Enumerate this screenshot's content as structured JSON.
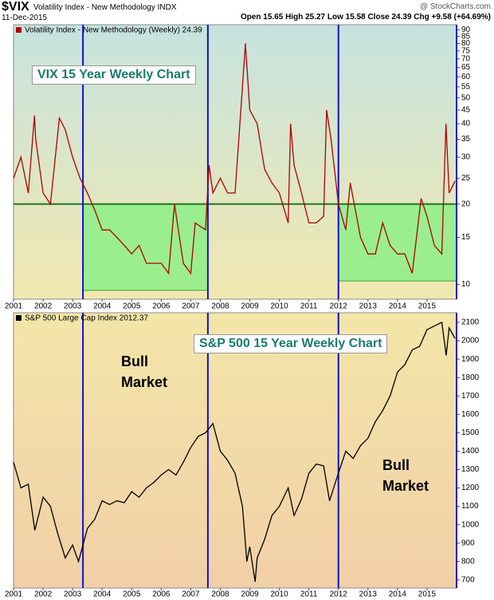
{
  "header": {
    "symbol": "$VIX",
    "name": "Volatility Index - New Methodology INDX",
    "source": "@ StockCharts.com",
    "date": "11-Dec-2015",
    "quote": "Open 15.65 High 25.27 Low 15.58 Close 24.39 Chg +9.58 (+64.69%)"
  },
  "chart_data": [
    {
      "type": "line",
      "log_scale": true,
      "x": [
        2001.0,
        2001.25,
        2001.5,
        2001.71,
        2001.75,
        2002.0,
        2002.25,
        2002.55,
        2002.75,
        2003.0,
        2003.25,
        2003.5,
        2003.75,
        2004.0,
        2004.25,
        2004.5,
        2004.75,
        2005.0,
        2005.25,
        2005.5,
        2005.75,
        2006.0,
        2006.25,
        2006.45,
        2006.75,
        2007.0,
        2007.15,
        2007.5,
        2007.62,
        2007.75,
        2008.0,
        2008.25,
        2008.5,
        2008.75,
        2008.85,
        2009.0,
        2009.25,
        2009.5,
        2009.75,
        2010.0,
        2010.3,
        2010.38,
        2010.5,
        2010.75,
        2011.0,
        2011.25,
        2011.5,
        2011.6,
        2011.75,
        2012.0,
        2012.25,
        2012.4,
        2012.75,
        2013.0,
        2013.25,
        2013.5,
        2013.75,
        2014.0,
        2014.25,
        2014.5,
        2014.8,
        2015.0,
        2015.25,
        2015.5,
        2015.64,
        2015.75,
        2015.95
      ],
      "series": [
        {
          "name": "Volatility Index - New Methodology (Weekly) 24.39",
          "color": "#b00000",
          "values": [
            25,
            30,
            22,
            43,
            35,
            22,
            20,
            42,
            38,
            30,
            25,
            22,
            19,
            16,
            16,
            15,
            14,
            13,
            14,
            12,
            12,
            12,
            11,
            20,
            12,
            11,
            17,
            16,
            28,
            22,
            25,
            22,
            22,
            55,
            80,
            45,
            40,
            27,
            24,
            22,
            17,
            40,
            28,
            22,
            17,
            17,
            18,
            45,
            35,
            20,
            16,
            24,
            15,
            13,
            13,
            17,
            14,
            13,
            13,
            11,
            21,
            18,
            14,
            13,
            40,
            22,
            24.39
          ]
        }
      ],
      "xlim": [
        2001,
        2016
      ],
      "xticks": [
        2001,
        2002,
        2003,
        2004,
        2005,
        2006,
        2007,
        2008,
        2009,
        2010,
        2011,
        2012,
        2013,
        2014,
        2015
      ],
      "ylim": [
        8.8,
        94
      ],
      "yticks": [
        10,
        15,
        20,
        25,
        30,
        35,
        40,
        45,
        50,
        55,
        60,
        65,
        70,
        75,
        80,
        85,
        90
      ],
      "grid": false,
      "hline": 20,
      "vlines": [
        2003.35,
        2007.58,
        2012.0
      ],
      "boxes": [
        {
          "x": [
            2003.35,
            2007.58
          ],
          "y": [
            9.5,
            20
          ]
        },
        {
          "x": [
            2012.0,
            2016
          ],
          "y": [
            10.3,
            20
          ]
        }
      ],
      "annotations": [
        "VIX 15 Year Weekly Chart"
      ]
    },
    {
      "type": "line",
      "log_scale": false,
      "x": [
        2001.0,
        2001.25,
        2001.5,
        2001.72,
        2002.0,
        2002.25,
        2002.5,
        2002.75,
        2003.0,
        2003.2,
        2003.5,
        2003.75,
        2004.0,
        2004.25,
        2004.5,
        2004.75,
        2005.0,
        2005.25,
        2005.5,
        2005.75,
        2006.0,
        2006.25,
        2006.5,
        2006.75,
        2007.0,
        2007.25,
        2007.5,
        2007.75,
        2008.0,
        2008.25,
        2008.5,
        2008.75,
        2008.9,
        2009.0,
        2009.18,
        2009.25,
        2009.5,
        2009.75,
        2010.0,
        2010.3,
        2010.5,
        2010.75,
        2011.0,
        2011.25,
        2011.5,
        2011.7,
        2012.0,
        2012.25,
        2012.5,
        2012.75,
        2013.0,
        2013.25,
        2013.5,
        2013.75,
        2014.0,
        2014.25,
        2014.5,
        2014.75,
        2015.0,
        2015.25,
        2015.5,
        2015.65,
        2015.75,
        2015.95
      ],
      "series": [
        {
          "name": "S&P 500 Large Cap Index 2012.37",
          "color": "#000000",
          "values": [
            1340,
            1200,
            1220,
            970,
            1150,
            1100,
            950,
            820,
            890,
            800,
            980,
            1030,
            1130,
            1110,
            1130,
            1120,
            1180,
            1150,
            1200,
            1230,
            1270,
            1300,
            1270,
            1340,
            1420,
            1480,
            1500,
            1550,
            1400,
            1350,
            1280,
            1100,
            800,
            880,
            690,
            820,
            920,
            1050,
            1100,
            1200,
            1050,
            1140,
            1280,
            1330,
            1320,
            1130,
            1280,
            1400,
            1360,
            1430,
            1470,
            1560,
            1620,
            1700,
            1830,
            1870,
            1950,
            1970,
            2060,
            2080,
            2100,
            1920,
            2070,
            2012.37
          ]
        }
      ],
      "xlim": [
        2001,
        2016
      ],
      "xticks": [
        2001,
        2002,
        2003,
        2004,
        2005,
        2006,
        2007,
        2008,
        2009,
        2010,
        2011,
        2012,
        2013,
        2014,
        2015
      ],
      "ylim": [
        656,
        2152
      ],
      "yticks": [
        700,
        800,
        900,
        1000,
        1100,
        1200,
        1300,
        1400,
        1500,
        1600,
        1700,
        1800,
        1900,
        2000,
        2100
      ],
      "grid": false,
      "vlines": [
        2003.35,
        2007.58,
        2012.0
      ],
      "annotations": [
        "S&P 500 15 Year Weekly Chart",
        "Bull Market",
        "Bull Market"
      ]
    }
  ]
}
